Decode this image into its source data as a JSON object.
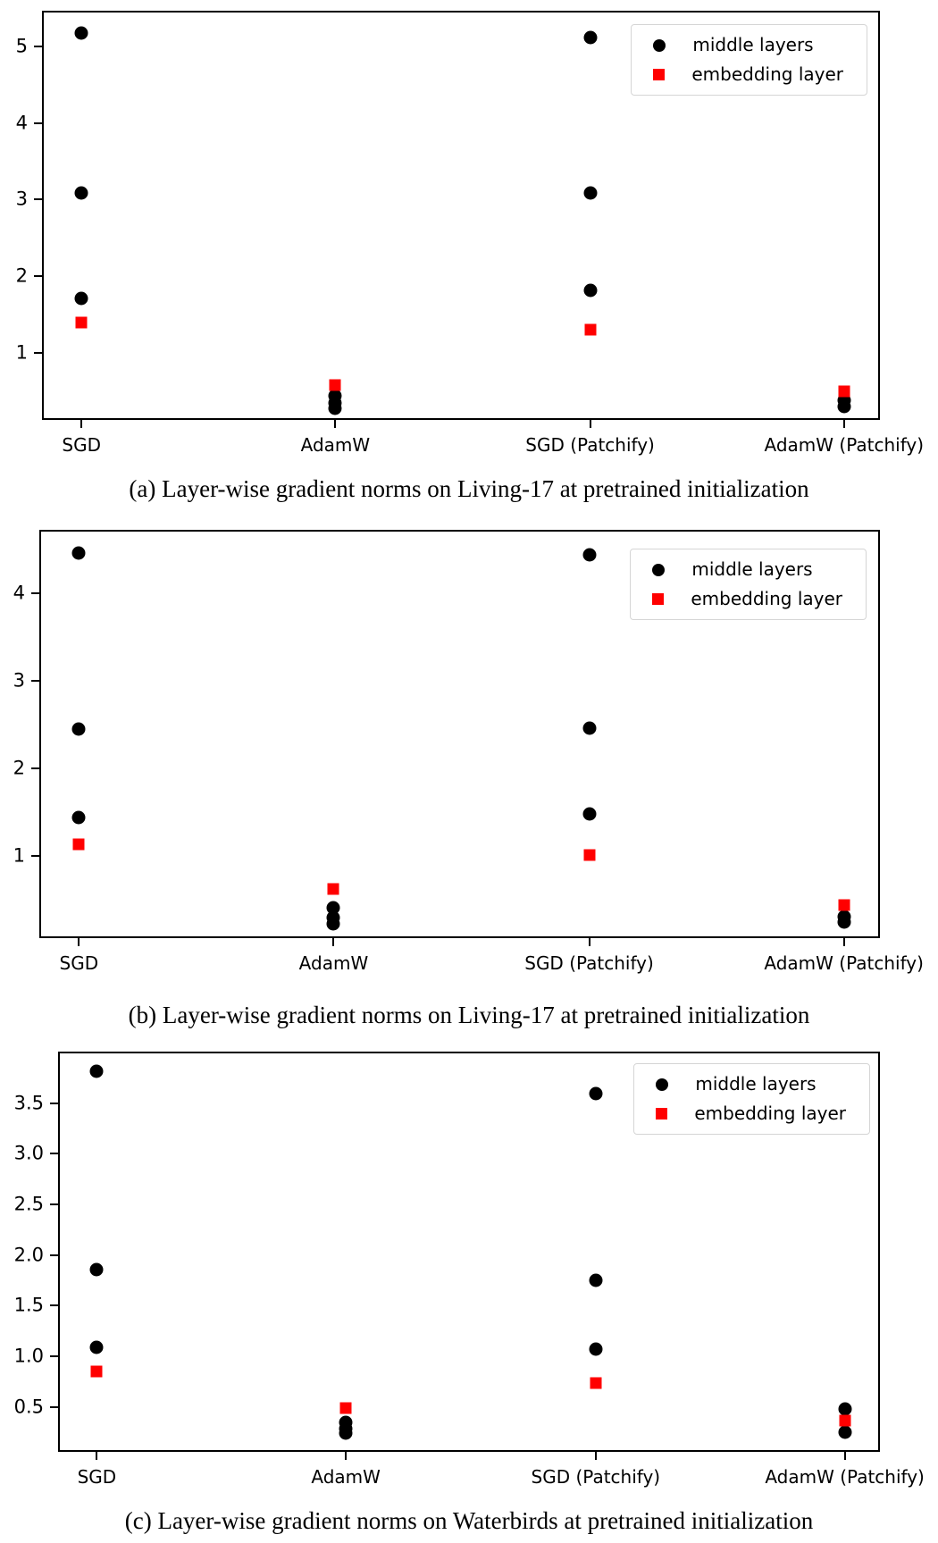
{
  "colors": {
    "middle_layers": "#000000",
    "embedding_layer": "#ff0000",
    "axis": "#000000",
    "background": "#ffffff",
    "legend_border": "#d5d5d5"
  },
  "legend": {
    "position": "upper right",
    "items": [
      {
        "label": "middle layers",
        "marker": "circle",
        "color": "#000000"
      },
      {
        "label": "embedding layer",
        "marker": "square",
        "color": "#ff0000"
      }
    ]
  },
  "chart_data": [
    {
      "type": "scatter",
      "caption": "(a) Layer-wise gradient norms on Living-17 at pretrained initialization",
      "categories": [
        "SGD",
        "AdamW",
        "SGD (Patchify)",
        "AdamW (Patchify)"
      ],
      "ytick_labels": [
        "1",
        "2",
        "3",
        "4",
        "5"
      ],
      "ytick_values": [
        1,
        2,
        3,
        4,
        5
      ],
      "ylim": [
        0.1,
        5.44
      ],
      "grid": false,
      "legend_position": "upper right",
      "series": [
        {
          "name": "middle layers",
          "marker": "circle",
          "color": "#000000",
          "points": [
            [
              0,
              5.17
            ],
            [
              0,
              3.09
            ],
            [
              0,
              1.71
            ],
            [
              1,
              0.44
            ],
            [
              1,
              0.35
            ],
            [
              1,
              0.28
            ],
            [
              2,
              5.11
            ],
            [
              2,
              3.09
            ],
            [
              2,
              1.81
            ],
            [
              3,
              0.38
            ],
            [
              3,
              0.3
            ]
          ]
        },
        {
          "name": "embedding layer",
          "marker": "square",
          "color": "#ff0000",
          "points": [
            [
              0,
              1.39
            ],
            [
              1,
              0.58
            ],
            [
              2,
              1.3
            ],
            [
              3,
              0.5
            ]
          ]
        }
      ]
    },
    {
      "type": "scatter",
      "caption": "(b) Layer-wise gradient norms on Living-17 at pretrained initialization",
      "categories": [
        "SGD",
        "AdamW",
        "SGD (Patchify)",
        "AdamW (Patchify)"
      ],
      "ytick_labels": [
        "1",
        "2",
        "3",
        "4"
      ],
      "ytick_values": [
        1,
        2,
        3,
        4
      ],
      "ylim": [
        0.04,
        4.7
      ],
      "grid": false,
      "legend_position": "upper right",
      "series": [
        {
          "name": "middle layers",
          "marker": "circle",
          "color": "#000000",
          "points": [
            [
              0,
              4.46
            ],
            [
              0,
              2.45
            ],
            [
              0,
              1.44
            ],
            [
              1,
              0.41
            ],
            [
              1,
              0.3
            ],
            [
              1,
              0.22
            ],
            [
              2,
              4.43
            ],
            [
              2,
              2.46
            ],
            [
              2,
              1.48
            ],
            [
              3,
              0.31
            ],
            [
              3,
              0.24
            ]
          ]
        },
        {
          "name": "embedding layer",
          "marker": "square",
          "color": "#ff0000",
          "points": [
            [
              0,
              1.13
            ],
            [
              1,
              0.62
            ],
            [
              2,
              1.01
            ],
            [
              3,
              0.44
            ]
          ]
        }
      ]
    },
    {
      "type": "scatter",
      "caption": "(c) Layer-wise gradient norms on Waterbirds at pretrained initialization",
      "categories": [
        "SGD",
        "AdamW",
        "SGD (Patchify)",
        "AdamW (Patchify)"
      ],
      "ytick_labels": [
        "0.5",
        "1.0",
        "1.5",
        "2.0",
        "2.5",
        "3.0",
        "3.5"
      ],
      "ytick_values": [
        0.5,
        1.0,
        1.5,
        2.0,
        2.5,
        3.0,
        3.5
      ],
      "ylim": [
        0.04,
        3.99
      ],
      "grid": false,
      "legend_position": "upper right",
      "series": [
        {
          "name": "middle layers",
          "marker": "circle",
          "color": "#000000",
          "points": [
            [
              0,
              3.81
            ],
            [
              0,
              1.86
            ],
            [
              0,
              1.09
            ],
            [
              1,
              0.35
            ],
            [
              1,
              0.29
            ],
            [
              1,
              0.24
            ],
            [
              2,
              3.59
            ],
            [
              2,
              1.75
            ],
            [
              2,
              1.07
            ],
            [
              3,
              0.48
            ],
            [
              3,
              0.25
            ]
          ]
        },
        {
          "name": "embedding layer",
          "marker": "square",
          "color": "#ff0000",
          "points": [
            [
              0,
              0.85
            ],
            [
              1,
              0.49
            ],
            [
              2,
              0.74
            ],
            [
              3,
              0.37
            ]
          ]
        }
      ]
    }
  ]
}
